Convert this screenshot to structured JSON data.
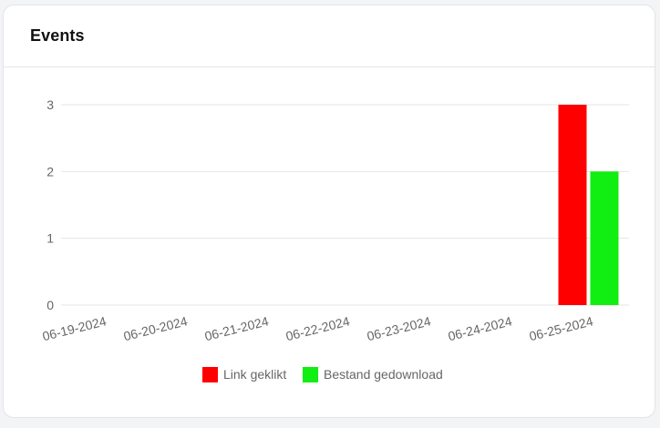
{
  "card": {
    "title": "Events"
  },
  "colors": {
    "series_1": "#ff0000",
    "series_2": "#11ee11",
    "grid": "#e5e5e5",
    "tick_text": "#666666",
    "legend_text": "#666666"
  },
  "chart_data": {
    "type": "bar",
    "title": "",
    "xlabel": "",
    "ylabel": "",
    "categories": [
      "06-19-2024",
      "06-20-2024",
      "06-21-2024",
      "06-22-2024",
      "06-23-2024",
      "06-24-2024",
      "06-25-2024"
    ],
    "series": [
      {
        "name": "Link geklikt",
        "color": "#ff0000",
        "values": [
          0,
          0,
          0,
          0,
          0,
          0,
          3
        ]
      },
      {
        "name": "Bestand gedownload",
        "color": "#11ee11",
        "values": [
          0,
          0,
          0,
          0,
          0,
          0,
          2
        ]
      }
    ],
    "ylim": [
      0,
      3
    ],
    "yticks": [
      0,
      1,
      2,
      3
    ],
    "grid": true,
    "legend_position": "bottom-center"
  }
}
